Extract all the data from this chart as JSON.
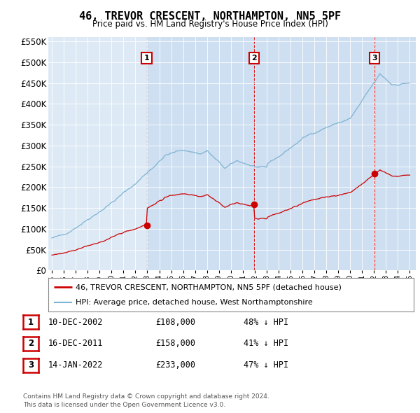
{
  "title": "46, TREVOR CRESCENT, NORTHAMPTON, NN5 5PF",
  "subtitle": "Price paid vs. HM Land Registry's House Price Index (HPI)",
  "ylim": [
    0,
    560000
  ],
  "yticks": [
    0,
    50000,
    100000,
    150000,
    200000,
    250000,
    300000,
    350000,
    400000,
    450000,
    500000,
    550000
  ],
  "ytick_labels": [
    "£0",
    "£50K",
    "£100K",
    "£150K",
    "£200K",
    "£250K",
    "£300K",
    "£350K",
    "£400K",
    "£450K",
    "£500K",
    "£550K"
  ],
  "xmin": 1994.7,
  "xmax": 2025.5,
  "transactions": [
    {
      "year": 2002.95,
      "price": 108000,
      "label": "1"
    },
    {
      "year": 2011.96,
      "price": 158000,
      "label": "2"
    },
    {
      "year": 2022.04,
      "price": 233000,
      "label": "3"
    }
  ],
  "legend_line1": "46, TREVOR CRESCENT, NORTHAMPTON, NN5 5PF (detached house)",
  "legend_line2": "HPI: Average price, detached house, West Northamptonshire",
  "table_rows": [
    {
      "num": "1",
      "date": "10-DEC-2002",
      "price": "£108,000",
      "hpi": "48% ↓ HPI"
    },
    {
      "num": "2",
      "date": "16-DEC-2011",
      "price": "£158,000",
      "hpi": "41% ↓ HPI"
    },
    {
      "num": "3",
      "date": "14-JAN-2022",
      "price": "£233,000",
      "hpi": "47% ↓ HPI"
    }
  ],
  "footer": "Contains HM Land Registry data © Crown copyright and database right 2024.\nThis data is licensed under the Open Government Licence v3.0.",
  "hpi_color": "#7fb3d3",
  "price_color": "#cc0000",
  "plot_bg": "#ddeaf5",
  "highlight_bg": "#cddff0",
  "grid_color": "#ffffff"
}
